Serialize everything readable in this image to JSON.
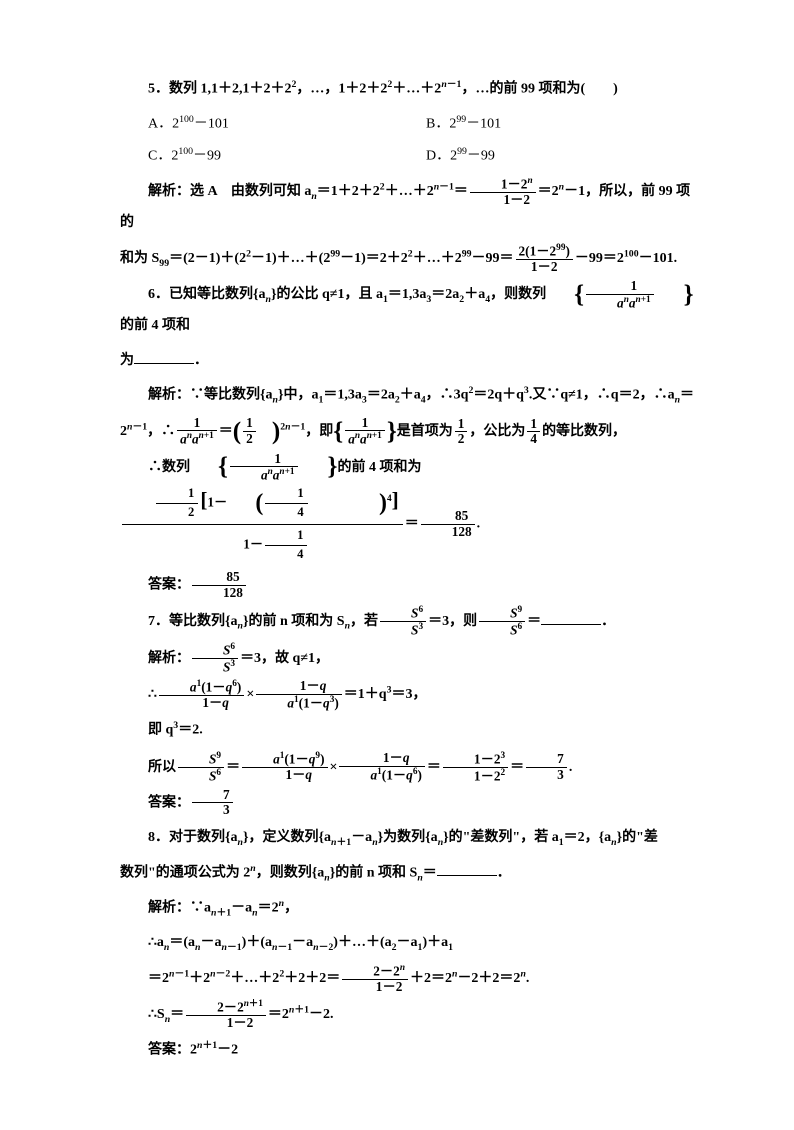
{
  "q5": {
    "stem_a": "5．数列 1,1＋2,1＋2＋2",
    "stem_b": "，…，1＋2＋2",
    "stem_c": "＋…＋2",
    "stem_d": "，…的前 99 项和为(　　)",
    "optA": "A．2",
    "optA_tail": "－101",
    "optB": "B．2",
    "optB_tail": "－101",
    "optC": "C．2",
    "optC_tail": "－99",
    "optD": "D．2",
    "optD_tail": "－99",
    "sol_lead": "解析：选 A　由数列可知 a",
    "sol_mid1": "＝1＋2＋2",
    "sol_mid2": "＋…＋2",
    "sol_mid3": "＝2",
    "sol_mid4": "－1，所以，前 99 项的",
    "sol2_a": "和为 S",
    "sol2_b": "＝(2－1)＋(2",
    "sol2_c": "－1)＋…＋(2",
    "sol2_d": "－1)＝2＋2",
    "sol2_e": "＋…＋2",
    "sol2_f": "－99＝",
    "sol2_g": "－99＝2",
    "sol2_h": "－101."
  },
  "q6": {
    "stem_a": "6．已知等比数列{a",
    "stem_b": "}的公比 q≠1，且 a",
    "stem_c": "＝1,3a",
    "stem_d": "＝2a",
    "stem_e": "＋a",
    "stem_f": "，则数列",
    "stem_g": "的前 4 项和",
    "stem_h": "为",
    "sol1_a": "解析：∵等比数列{a",
    "sol1_b": "}中，a",
    "sol1_c": "＝1,3a",
    "sol1_d": "＝2a",
    "sol1_e": "＋a",
    "sol1_f": "，∴3q",
    "sol1_g": "＝2q＋q",
    "sol1_h": ".又∵q≠1，∴q＝2，∴a",
    "sol1_i": "＝",
    "sol2_a": "2",
    "sol2_b": "，∴",
    "sol2_c": "，即",
    "sol2_d": "是首项为",
    "sol2_e": "，公比为",
    "sol2_f": "的等比数列，",
    "sol3_a": "∴数列",
    "sol3_b": "的前 4 项和为",
    "ans": "答案："
  },
  "q7": {
    "stem_a": "7．等比数列{a",
    "stem_b": "}的前 n 项和为 S",
    "stem_c": "，若",
    "stem_d": "＝3，则",
    "stem_e": "＝",
    "sol1": "解析：",
    "sol1_b": "＝3，故 q≠1，",
    "sol2_a": "∴",
    "sol2_b": "＝1＋q",
    "sol2_c": "＝3，",
    "sol3": "即 q",
    "sol3_b": "＝2.",
    "sol4_a": "所以",
    "ans": "答案："
  },
  "q8": {
    "stem_a": "8．对于数列{a",
    "stem_b": "}，定义数列{a",
    "stem_c": "－a",
    "stem_d": "}为数列{a",
    "stem_e": "}的\"差数列\"，若 a",
    "stem_f": "＝2，{a",
    "stem_g": "}的\"差",
    "stem2_a": "数列\"的通项公式为 2",
    "stem2_b": "，则数列{a",
    "stem2_c": "}的前 n 项和 S",
    "stem2_d": "＝",
    "sol1_a": "解析：∵a",
    "sol1_b": "－a",
    "sol1_c": "＝2",
    "sol2_a": "∴a",
    "sol2_b": "＝(a",
    "sol2_c": "－a",
    "sol2_d": ")＋(a",
    "sol2_e": "－a",
    "sol2_f": ")＋…＋(a",
    "sol2_g": "－a",
    "sol2_h": ")＋a",
    "sol3_a": "＝2",
    "sol3_b": "＋2",
    "sol3_c": "＋…＋2",
    "sol3_d": "＋2＋2＝",
    "sol3_e": "＋2＝2",
    "sol3_f": "－2＋2＝2",
    "sol4_a": "∴S",
    "sol4_b": "＝2",
    "sol4_c": "－2.",
    "ans_a": "答案：2",
    "ans_b": "－2"
  },
  "frac": {
    "f1_num": "1－2",
    "f1_den": "1－2",
    "f2_num": "2(1－2",
    "f2_num_b": ")",
    "f2_den": "1－2",
    "f3_num": "1",
    "f3_den_a": "a",
    "f3_den_b": "a",
    "f4_num": "1",
    "f4_den": "2",
    "f5_num": "1",
    "f5_den": "4",
    "f85_num": "85",
    "f85_den": "128",
    "fS6_num": "S",
    "fS6_den": "S",
    "fS9_num": "S",
    "fS9_den": "S",
    "fa1_num": "a",
    "fa1_num_b": "(1－q",
    "fa1_num_c": ")",
    "fa1_den": "1－q",
    "fb_num": "1－q",
    "fb_den_a": "a",
    "fb_den_b": "(1－q",
    "fb_den_c": ")",
    "fc_num": "1－2",
    "fc_den": "1－2",
    "f73_num": "7",
    "f73_den": "3",
    "fd_num": "2－2",
    "fd_den": "1－2"
  }
}
